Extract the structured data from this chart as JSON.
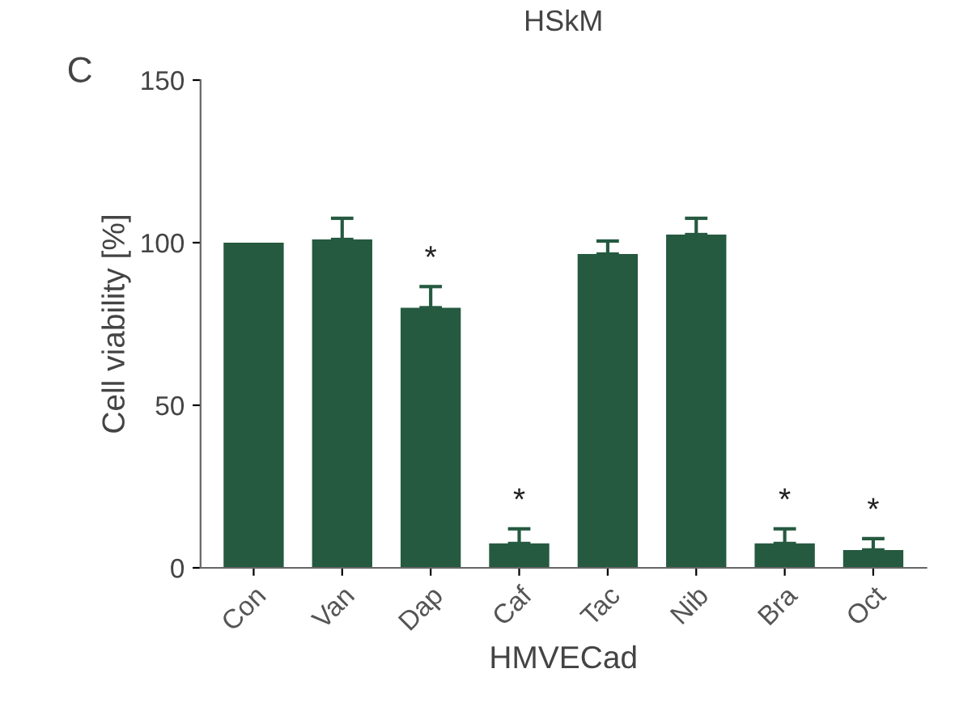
{
  "chart_data": {
    "type": "bar",
    "title": "HSkM",
    "xlabel": "HMVECad",
    "ylabel": "Cell viability [%]",
    "categories": [
      "Con",
      "Van",
      "Dap",
      "Caf",
      "Tac",
      "Nib",
      "Bra",
      "Oct"
    ],
    "values": [
      100,
      101,
      80,
      7.5,
      96.5,
      102.5,
      7.5,
      5.5
    ],
    "errors": [
      null,
      6.5,
      6.5,
      4.5,
      4,
      5,
      4.5,
      3.5
    ],
    "color": "#255a40",
    "ylim": [
      0,
      150
    ],
    "yticks": [
      0,
      50,
      100,
      150
    ],
    "grid": false,
    "legend": false,
    "annotations": [
      "C",
      {
        "text": "*",
        "x": "Dap",
        "y": 86.5
      },
      {
        "text": "*",
        "x": "Caf",
        "y": 12
      },
      {
        "text": "*",
        "x": "Bra",
        "y": 12
      },
      {
        "text": "*",
        "x": "Oct",
        "y": 9
      }
    ]
  }
}
